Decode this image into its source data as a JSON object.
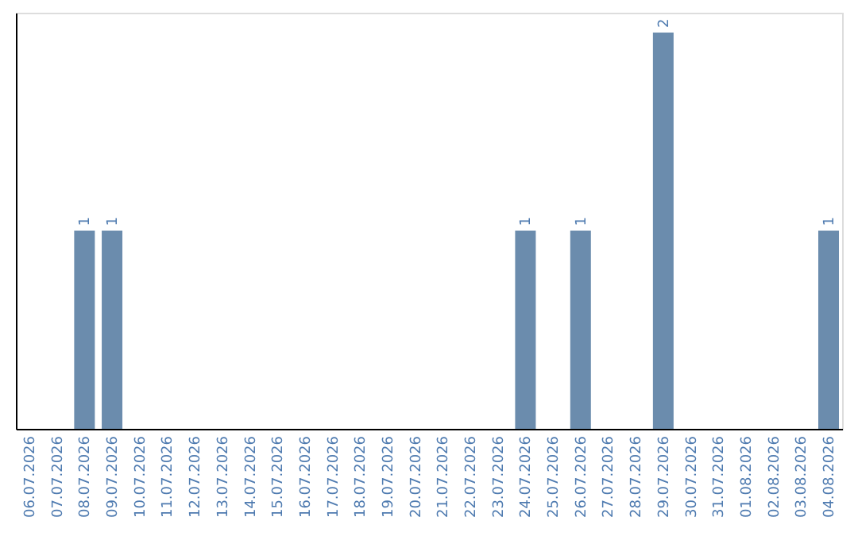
{
  "chart_data": {
    "type": "bar",
    "categories": [
      "06.07.2026",
      "07.07.2026",
      "08.07.2026",
      "09.07.2026",
      "10.07.2026",
      "11.07.2026",
      "12.07.2026",
      "13.07.2026",
      "14.07.2026",
      "15.07.2026",
      "16.07.2026",
      "17.07.2026",
      "18.07.2026",
      "19.07.2026",
      "20.07.2026",
      "21.07.2026",
      "22.07.2026",
      "23.07.2026",
      "24.07.2026",
      "25.07.2026",
      "26.07.2026",
      "27.07.2026",
      "28.07.2026",
      "29.07.2026",
      "30.07.2026",
      "31.07.2026",
      "01.08.2026",
      "02.08.2026",
      "03.08.2026",
      "04.08.2026"
    ],
    "values": [
      0,
      0,
      1,
      1,
      0,
      0,
      0,
      0,
      0,
      0,
      0,
      0,
      0,
      0,
      0,
      0,
      0,
      0,
      1,
      0,
      1,
      0,
      0,
      2,
      0,
      0,
      0,
      0,
      0,
      1
    ],
    "value_labels": [
      null,
      null,
      "1",
      "1",
      null,
      null,
      null,
      null,
      null,
      null,
      null,
      null,
      null,
      null,
      null,
      null,
      null,
      null,
      "1",
      null,
      "1",
      null,
      null,
      "2",
      null,
      null,
      null,
      null,
      null,
      "1"
    ],
    "color": "#6b8cad",
    "ylim": [
      0,
      2.1
    ],
    "grid": false,
    "tick_labels": "x"
  }
}
